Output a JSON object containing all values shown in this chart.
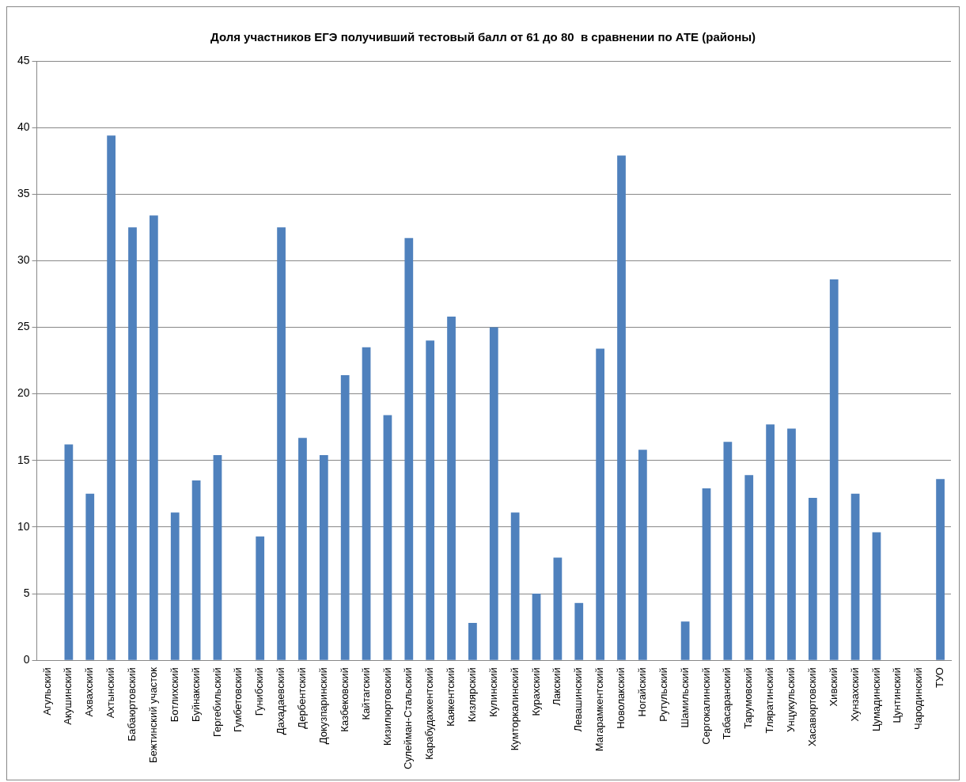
{
  "chart_data": {
    "type": "bar",
    "title": "Доля участников ЕГЭ получивший тестовый балл от 61 до 80  в сравнении по АТЕ (районы)",
    "categories": [
      "Агульский",
      "Акушинский",
      "Ахвахский",
      "Ахтынский",
      "Бабаюртовский",
      "Бежтинский участок",
      "Ботлихский",
      "Буйнакский",
      "Гергебильский",
      "Гумбетовский",
      "Гунибский",
      "Дахадаевский",
      "Дербентский",
      "Докузпаринский",
      "Казбековский",
      "Кайтагский",
      "Кизилюртовский",
      "Сулейман-Стальский",
      "Карабудахкентский",
      "Каякентский",
      "Кизлярский",
      "Кулинский",
      "Кумторкалинский",
      "Курахский",
      "Лакский",
      "Левашинский",
      "Магарамкентский",
      "Новолакский",
      "Ногайский",
      "Рутульский",
      "Шамильский",
      "Сергокалинский",
      "Табасаранский",
      "Тарумовский",
      "Тляратинский",
      "Унцукульский",
      "Хасавюртовский",
      "Хивский",
      "Хунзахский",
      "Цумадинский",
      "Цунтинский",
      "Чародинский",
      "ТУО"
    ],
    "values": [
      0,
      16.2,
      12.5,
      39.4,
      32.5,
      33.4,
      11.1,
      13.5,
      15.4,
      0,
      9.3,
      32.5,
      16.7,
      15.4,
      21.4,
      23.5,
      18.4,
      31.7,
      24.0,
      25.8,
      2.8,
      25.0,
      11.1,
      5.0,
      7.7,
      4.3,
      23.4,
      37.9,
      15.8,
      0,
      2.9,
      12.9,
      16.4,
      13.9,
      17.7,
      17.4,
      12.2,
      28.6,
      12.5,
      9.6,
      0,
      0,
      13.6
    ],
    "color": "#4f81bd",
    "ylim": [
      0,
      45
    ],
    "yticks": [
      0,
      5,
      10,
      15,
      20,
      25,
      30,
      35,
      40,
      45
    ],
    "grid": "y"
  }
}
